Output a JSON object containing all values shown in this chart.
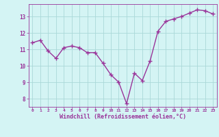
{
  "x": [
    0,
    1,
    2,
    3,
    4,
    5,
    6,
    7,
    8,
    9,
    10,
    11,
    12,
    13,
    14,
    15,
    16,
    17,
    18,
    19,
    20,
    21,
    22,
    23
  ],
  "y": [
    11.4,
    11.55,
    10.9,
    10.45,
    11.1,
    11.2,
    11.1,
    10.8,
    10.8,
    10.15,
    9.45,
    9.0,
    7.7,
    9.55,
    9.1,
    10.3,
    12.1,
    12.7,
    12.85,
    13.0,
    13.2,
    13.4,
    13.35,
    13.15
  ],
  "line_color": "#993399",
  "marker": "+",
  "markersize": 4,
  "linewidth": 1.0,
  "xlabel": "Windchill (Refroidissement éolien,°C)",
  "xlabel_fontsize": 6.0,
  "bg_color": "#d4f4f4",
  "grid_color": "#aad8d8",
  "tick_color": "#993399",
  "label_color": "#993399",
  "xlim": [
    -0.5,
    23.5
  ],
  "ylim": [
    7.5,
    13.75
  ],
  "yticks": [
    8,
    9,
    10,
    11,
    12,
    13
  ],
  "xtick_labels": [
    "0",
    "1",
    "2",
    "3",
    "4",
    "5",
    "6",
    "7",
    "8",
    "9",
    "10",
    "11",
    "12",
    "13",
    "14",
    "15",
    "16",
    "17",
    "18",
    "19",
    "20",
    "21",
    "22",
    "23"
  ]
}
